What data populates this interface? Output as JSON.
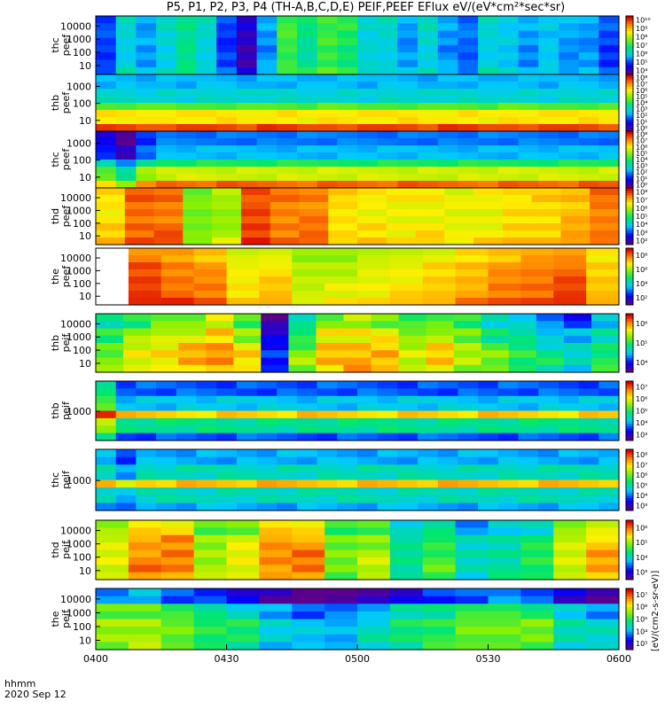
{
  "title": "P5, P1, P2, P3, P4 (TH-A,B,C,D,E) PEIF,PEEF EFlux eV/(eV*cm²*sec*sr)",
  "colorbar_label": "[eV/(cm2-s-sr-eV)]",
  "time_axis_label": "hhmm",
  "date_label": "2020 Sep 12",
  "chart_data": {
    "type": "heatmap",
    "x_ticks": [
      "0400",
      "0430",
      "0500",
      "0530",
      "0600"
    ],
    "x_range": [
      "0400",
      "0600"
    ],
    "panels": [
      {
        "label": [
          "thc",
          "peef"
        ],
        "y_ticks": [
          "10",
          "100",
          "1000",
          "10000"
        ],
        "cbar_ticks": [
          "10⁴",
          "10⁵",
          "10⁶",
          "10⁷",
          "10⁸",
          "10⁹",
          "10¹⁰"
        ],
        "cmin": 4,
        "cmax": 10,
        "cols": [
          5,
          6,
          5.5,
          6,
          6.5,
          6,
          5,
          4.2,
          5.5,
          7,
          6.5,
          7,
          6.8,
          6,
          6,
          5.5,
          6,
          5.5,
          5.2,
          6,
          5.8,
          5.5,
          5.8,
          5.5,
          5.5,
          5
        ],
        "profile": [
          0.3,
          0.2,
          0.1,
          0.15,
          0.4
        ]
      },
      {
        "label": [
          "thb",
          "peef"
        ],
        "y_ticks": [
          "10",
          "100",
          "1000"
        ],
        "cbar_ticks": [
          "10⁰",
          "10¹",
          "10²",
          "10³",
          "10⁴",
          "10⁵",
          "10⁶",
          "10⁷",
          "10⁸"
        ],
        "cmin": 0,
        "cmax": 8,
        "cols": [
          7.5,
          7.5,
          7.4,
          7.5,
          7.4,
          7.5,
          7.5,
          7.4,
          7.5,
          7.5,
          7.4,
          7.5,
          7.5,
          7.4,
          7.5,
          7.5,
          7.4,
          7.5,
          7.5,
          7.4,
          7.5,
          7.5,
          7.4,
          7.5,
          7.5,
          7.4
        ],
        "profile": [
          -5,
          -4.5,
          -3,
          -1.5,
          0
        ]
      },
      {
        "label": [
          "thc",
          "peef"
        ],
        "y_ticks": [
          "10",
          "100",
          "1000"
        ],
        "cbar_ticks": [
          "10⁰",
          "10¹",
          "10²",
          "10³",
          "10⁴",
          "10⁵",
          "10⁶",
          "10⁷",
          "10⁸"
        ],
        "cmin": 0,
        "cmax": 8,
        "cols": [
          6,
          5,
          6.5,
          7,
          7,
          7,
          7,
          7,
          7,
          7,
          7,
          7,
          7,
          7,
          7,
          7,
          7,
          7,
          7,
          7,
          7,
          7,
          7,
          7,
          7,
          7
        ],
        "profile": [
          -5,
          -4.5,
          -3,
          -1.5,
          0.2
        ]
      },
      {
        "label": [
          "thd",
          "peef"
        ],
        "y_ticks": [
          "10",
          "100",
          "1000",
          "10000"
        ],
        "cbar_ticks": [
          "10²",
          "10³",
          "10⁴",
          "10⁵",
          "10⁶",
          "10⁷",
          "10⁸"
        ],
        "cmin": 2,
        "cmax": 8,
        "cols": [
          6.5,
          7.3,
          7.3,
          5.5,
          5.8,
          7.5,
          7.2,
          7.2,
          6.5,
          6.4,
          6.3,
          6.4,
          6.2,
          6.3,
          6.5,
          6.6,
          6.8,
          7.2
        ],
        "profile": [
          0.1,
          0,
          0,
          0.1,
          0.3
        ]
      },
      {
        "label": [
          "the",
          "peef"
        ],
        "y_ticks": [
          "10",
          "100",
          "1000",
          "10000"
        ],
        "cbar_ticks": [
          "10²",
          "10⁴",
          "10⁶",
          "10⁸"
        ],
        "cmin": 1,
        "cmax": 8,
        "cols": [
          null,
          7.3,
          7,
          6.8,
          6,
          6.2,
          5.5,
          5.6,
          5.8,
          6,
          6.2,
          6.5,
          6.8,
          7,
          7.2,
          6.3
        ],
        "profile": [
          -0.2,
          0.1,
          0.2,
          0.3,
          0.6
        ]
      },
      {
        "label": [
          "thb",
          "peif"
        ],
        "y_ticks": [
          "10",
          "100",
          "1000",
          "10000"
        ],
        "cbar_ticks": [
          "10⁴",
          "10⁵",
          "10⁶"
        ],
        "cmin": 3.7,
        "cmax": 6.8,
        "cols": [
          5.5,
          5.8,
          6,
          6.1,
          6.3,
          5.9,
          4.2,
          5.5,
          6.1,
          6.2,
          6.1,
          5.8,
          6,
          5.7,
          5.4,
          5.2,
          5,
          4.8,
          5.2
        ],
        "profile": [
          -0.5,
          -0.2,
          0,
          0.1,
          0
        ]
      },
      {
        "label": [
          "thb",
          "peif"
        ],
        "y_ticks": [
          "1000"
        ],
        "cbar_ticks": [
          "10³",
          "10⁴",
          "10⁵",
          "10⁶",
          "10⁷"
        ],
        "cmin": 3,
        "cmax": 7.5,
        "cols": [
          6,
          5,
          5,
          5,
          5,
          5,
          5,
          5,
          5,
          5,
          5,
          5,
          5,
          5,
          5,
          5,
          5,
          5,
          5,
          5,
          5,
          5,
          5,
          5,
          5,
          5
        ],
        "profile": [
          -1,
          -0.5,
          1.5,
          0,
          -1
        ]
      },
      {
        "label": [
          "thc",
          "peif"
        ],
        "y_ticks": [
          "1000"
        ],
        "cbar_ticks": [
          "10³",
          "10⁴",
          "10⁵",
          "10⁶",
          "10⁷",
          "10⁸"
        ],
        "cmin": 3,
        "cmax": 8,
        "cols": [
          5.5,
          5,
          5.5,
          5.5,
          5.5,
          5.5,
          5.5,
          5.5,
          5.5,
          5.5,
          5.5,
          5.5,
          5.5,
          5.5,
          5.5,
          5.5,
          5.5,
          5.5,
          5.5,
          5.5,
          5.5,
          5.5,
          5.5,
          5.5,
          5.5,
          5.5
        ],
        "profile": [
          -1,
          -0.5,
          1.5,
          -0.5,
          -1
        ]
      },
      {
        "label": [
          "thd",
          "peif"
        ],
        "y_ticks": [
          "10",
          "100",
          "1000",
          "10000"
        ],
        "cbar_ticks": [
          "10³",
          "10⁴",
          "10⁵",
          "10⁶"
        ],
        "cmin": 2.8,
        "cmax": 6.6,
        "cols": [
          5.4,
          6,
          6,
          5.2,
          5.4,
          6,
          6,
          5,
          5.2,
          4.4,
          4.8,
          4.2,
          4.4,
          4.6,
          5.4,
          5.8
        ],
        "profile": [
          -0.3,
          0,
          0.1,
          0.1,
          0
        ]
      },
      {
        "label": [
          "the",
          "peif"
        ],
        "y_ticks": [
          "10",
          "100",
          "1000",
          "10000"
        ],
        "cbar_ticks": [
          "10³",
          "10⁴",
          "10⁵",
          "10⁶",
          "10⁷"
        ],
        "cmin": 3.5,
        "cmax": 7.3,
        "cols": [
          5.8,
          5.9,
          5.6,
          5.4,
          5.2,
          4.8,
          4.6,
          4.6,
          4.9,
          5.2,
          5.4,
          5.6,
          5.7,
          5.6,
          5,
          4.8
        ],
        "profile": [
          -1.2,
          -0.2,
          0.1,
          0.1,
          0
        ]
      }
    ]
  }
}
